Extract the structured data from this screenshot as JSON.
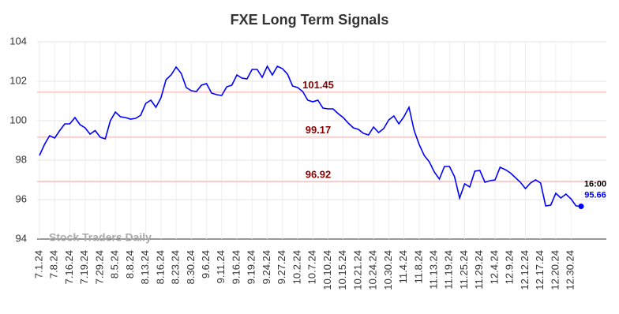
{
  "chart_data": {
    "type": "line",
    "title": "FXE Long Term Signals",
    "categories": [
      "7.1.24",
      null,
      null,
      "7.8.24",
      null,
      null,
      "7.16.24",
      null,
      null,
      "7.19.24",
      null,
      null,
      "7.29.24",
      null,
      null,
      "8.5.24",
      null,
      null,
      "8.8.24",
      null,
      null,
      "8.13.24",
      null,
      null,
      "8.16.24",
      null,
      null,
      "8.23.24",
      null,
      null,
      "8.30.24",
      null,
      null,
      "9.6.24",
      null,
      null,
      "9.11.24",
      null,
      null,
      "9.16.24",
      null,
      null,
      "9.19.24",
      null,
      null,
      "9.24.24",
      null,
      null,
      "9.27.24",
      null,
      null,
      "10.2.24",
      null,
      null,
      "10.7.24",
      null,
      null,
      "10.10.24",
      null,
      null,
      "10.15.24",
      null,
      null,
      "10.21.24",
      null,
      null,
      "10.24.24",
      null,
      null,
      "10.30.24",
      null,
      null,
      "11.4.24",
      null,
      null,
      "11.8.24",
      null,
      null,
      "11.13.24",
      null,
      null,
      "11.19.24",
      null,
      null,
      "11.25.24",
      null,
      null,
      "11.29.24",
      null,
      null,
      "12.4.24",
      null,
      null,
      "12.9.24",
      null,
      null,
      "12.12.24",
      null,
      null,
      "12.17.24",
      null,
      null,
      "12.20.24",
      null,
      null,
      "12.30.24",
      null,
      null
    ],
    "values": [
      98.24,
      98.8,
      99.24,
      99.12,
      99.5,
      99.84,
      99.84,
      100.16,
      99.8,
      99.64,
      99.32,
      99.5,
      99.16,
      99.08,
      100.0,
      100.44,
      100.2,
      100.16,
      100.08,
      100.12,
      100.28,
      100.88,
      101.04,
      100.68,
      101.16,
      102.08,
      102.32,
      102.72,
      102.4,
      101.68,
      101.52,
      101.48,
      101.8,
      101.88,
      101.4,
      101.32,
      101.28,
      101.72,
      101.8,
      102.32,
      102.16,
      102.12,
      102.6,
      102.6,
      102.2,
      102.76,
      102.32,
      102.76,
      102.64,
      102.36,
      101.76,
      101.68,
      101.48,
      101.04,
      100.96,
      101.04,
      100.64,
      100.6,
      100.6,
      100.36,
      100.16,
      99.88,
      99.64,
      99.56,
      99.36,
      99.28,
      99.68,
      99.4,
      99.6,
      100.04,
      100.24,
      99.84,
      100.2,
      100.68,
      99.52,
      98.8,
      98.24,
      97.92,
      97.4,
      97.04,
      97.68,
      97.68,
      97.16,
      96.08,
      96.8,
      96.64,
      97.44,
      97.48,
      96.88,
      96.96,
      97.0,
      97.64,
      97.52,
      97.36,
      97.12,
      96.88,
      96.56,
      96.84,
      97.0,
      96.84,
      95.68,
      95.72,
      96.32,
      96.08,
      96.28,
      96.04,
      95.68,
      95.66
    ],
    "color": "#0000ff",
    "ylim": [
      94,
      104
    ],
    "yticks": [
      94,
      96,
      98,
      100,
      102,
      104
    ],
    "grid": true,
    "levels": [
      101.45,
      99.17,
      96.92
    ],
    "level_color": "#ffcccc",
    "level_label_color": "#8b0000",
    "last_time": "16:00",
    "watermark": "Stock Traders Daily"
  }
}
